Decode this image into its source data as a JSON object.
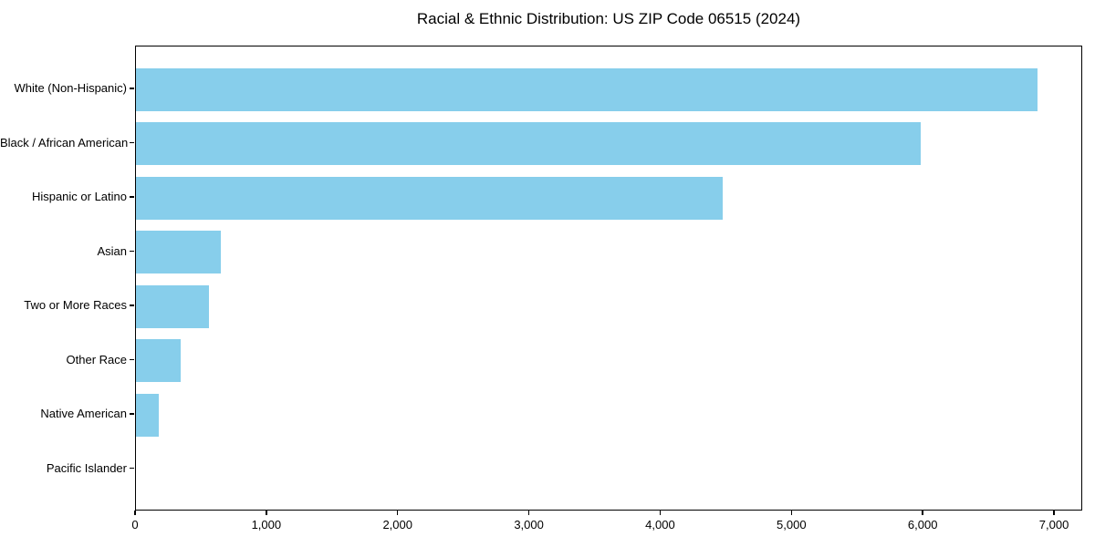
{
  "chart_data": {
    "type": "bar",
    "orientation": "horizontal",
    "title": "Racial & Ethnic Distribution: US ZIP Code 06515 (2024)",
    "categories": [
      "White (Non-Hispanic)",
      "Black / African American",
      "Hispanic or Latino",
      "Asian",
      "Two or More Races",
      "Other Race",
      "Native American",
      "Pacific Islander"
    ],
    "values": [
      6870,
      5980,
      4470,
      645,
      555,
      340,
      175,
      0
    ],
    "xlabel": "",
    "ylabel": "",
    "xlim": [
      0,
      7215
    ],
    "xticks": [
      0,
      1000,
      2000,
      3000,
      4000,
      5000,
      6000,
      7000
    ],
    "xtick_labels": [
      "0",
      "1,000",
      "2,000",
      "3,000",
      "4,000",
      "5,000",
      "6,000",
      "7,000"
    ],
    "grid": false,
    "legend": "none",
    "colors": {
      "bar": "#87CEEB",
      "spine": "#000000",
      "text": "#000000",
      "background": "#FFFFFF"
    }
  }
}
